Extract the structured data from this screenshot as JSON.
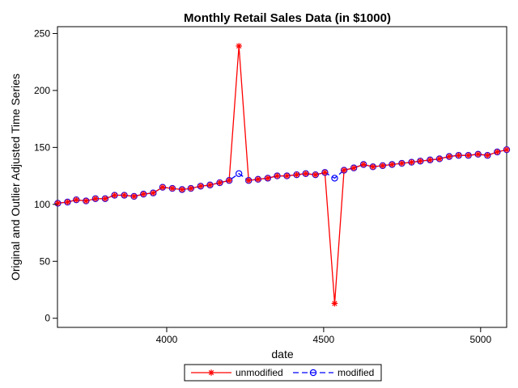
{
  "chart_data": {
    "type": "line",
    "title": "Monthly Retail Sales Data (in $1000)",
    "xlabel": "date",
    "ylabel": "Original and Outlier Adjusted Time Series",
    "xlim": [
      3652,
      5083
    ],
    "ylim": [
      -8,
      256
    ],
    "xticks": [
      4000,
      4500,
      5000
    ],
    "yticks": [
      0,
      50,
      100,
      150,
      200,
      250
    ],
    "grid": false,
    "legend_position": "bottom",
    "x": [
      3653,
      3684,
      3712,
      3743,
      3773,
      3804,
      3834,
      3865,
      3896,
      3926,
      3957,
      3987,
      4018,
      4049,
      4077,
      4108,
      4138,
      4169,
      4199,
      4230,
      4261,
      4291,
      4322,
      4352,
      4383,
      4414,
      4443,
      4474,
      4504,
      4535,
      4565,
      4596,
      4627,
      4657,
      4688,
      4718,
      4749,
      4780,
      4808,
      4839,
      4869,
      4900,
      4930,
      4961,
      4992,
      5022,
      5053,
      5083
    ],
    "series": [
      {
        "name": "unmodified",
        "color": "#ff0000",
        "marker": "star",
        "line": "solid",
        "values": [
          101,
          102,
          104,
          103,
          105,
          105,
          108,
          108,
          107,
          109,
          110,
          115,
          114,
          113,
          114,
          116,
          117,
          119,
          121,
          239,
          121,
          122,
          123,
          125,
          125,
          126,
          127,
          126,
          128,
          13,
          130,
          132,
          135,
          133,
          134,
          135,
          136,
          137,
          138,
          139,
          140,
          142,
          143,
          143,
          144,
          143,
          146,
          148
        ]
      },
      {
        "name": "modified",
        "color": "#0000ff",
        "marker": "circle",
        "line": "dashed",
        "values": [
          101,
          102,
          104,
          103,
          105,
          105,
          108,
          108,
          107,
          109,
          110,
          115,
          114,
          113,
          114,
          116,
          117,
          119,
          121,
          127,
          121,
          122,
          123,
          125,
          125,
          126,
          127,
          126,
          128,
          123,
          130,
          132,
          135,
          133,
          134,
          135,
          136,
          137,
          138,
          139,
          140,
          142,
          143,
          143,
          144,
          143,
          146,
          148
        ]
      }
    ]
  }
}
